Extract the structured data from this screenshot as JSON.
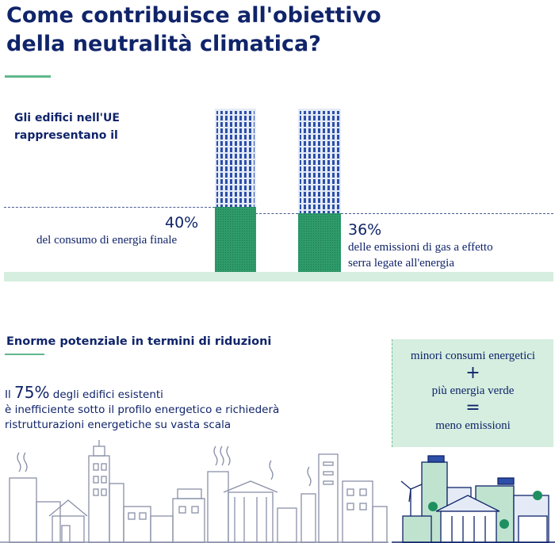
{
  "title": {
    "line1": "Come contribuisce all'obiettivo",
    "line2": "della neutralità climatica?"
  },
  "intro": {
    "line1": "Gli edifici nell'UE",
    "line2": "rappresentano il"
  },
  "stats": [
    {
      "value": "40%",
      "label": "del consumo di energia finale",
      "level_percent": 40
    },
    {
      "value": "36%",
      "label_line1": "delle emissioni di gas a effetto",
      "label_line2": "serra legate all'energia",
      "level_percent": 36
    }
  ],
  "potential": {
    "title": "Enorme potenziale in termini di riduzioni",
    "prefix": "Il ",
    "percent": "75%",
    "line1_rest": " degli edifici esistenti",
    "line2": "è inefficiente sotto il profilo energetico e richiederà",
    "line3": "ristrutturazioni energetiche su vasta scala"
  },
  "equation": {
    "term1": "minori consumi energetici",
    "plus": "+",
    "term2": "più energia verde",
    "equals": "=",
    "result": "meno emissioni"
  },
  "colors": {
    "navy": "#10246a",
    "green": "#1f8f5f",
    "light_green": "#d5eedf",
    "blue": "#2d4fa8"
  }
}
